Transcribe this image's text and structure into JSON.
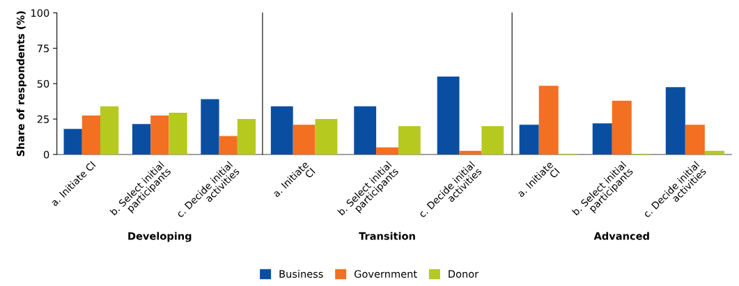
{
  "chart_data": [
    {
      "type": "bar",
      "xlabel": "Developing",
      "ylabel": "Share of respondents (%)",
      "categories": [
        "a. Initiate CI",
        "b. Select initial\nparticipants",
        "c. Decide initial\nactivities"
      ],
      "ylim": [
        0,
        100
      ],
      "yticks": [
        0,
        25,
        50,
        75,
        100
      ],
      "grid": false,
      "legend": "bottom",
      "series": [
        {
          "name": "Business",
          "color": "#0a4ea2",
          "values": [
            18,
            21.5,
            39
          ]
        },
        {
          "name": "Government",
          "color": "#f36f21",
          "values": [
            27.5,
            27.5,
            13
          ]
        },
        {
          "name": "Donor",
          "color": "#b5c91f",
          "values": [
            34,
            29.5,
            25
          ]
        }
      ]
    },
    {
      "type": "bar",
      "xlabel": "Transition",
      "categories": [
        "a. Initiate\nCI",
        "b. Select initial\nparticipants",
        "c. Decide initial\nactivities"
      ],
      "ylim": [
        0,
        100
      ],
      "yticks": [
        0,
        25,
        50,
        75,
        100
      ],
      "tick_labels": "x",
      "grid": false,
      "series": [
        {
          "color": "#0a4ea2",
          "values": [
            34,
            34,
            55
          ]
        },
        {
          "color": "#f36f21",
          "values": [
            21,
            5,
            2.5
          ]
        },
        {
          "color": "#b5c91f",
          "values": [
            25,
            20,
            20
          ]
        }
      ]
    },
    {
      "type": "bar",
      "xlabel": "Advanced",
      "categories": [
        "a. Initiate\nCI",
        "b. Select initial\nparticipants",
        "c. Decide initial\nactivities"
      ],
      "ylim": [
        0,
        100
      ],
      "yticks": [
        0,
        25,
        50,
        75,
        100
      ],
      "tick_labels": "x",
      "grid": false,
      "series": [
        {
          "color": "#0a4ea2",
          "values": [
            21,
            22,
            47.5
          ]
        },
        {
          "color": "#f36f21",
          "values": [
            48.5,
            38,
            21
          ]
        },
        {
          "color": "#b5c91f",
          "values": [
            0.5,
            0.5,
            2.5
          ]
        }
      ]
    }
  ]
}
